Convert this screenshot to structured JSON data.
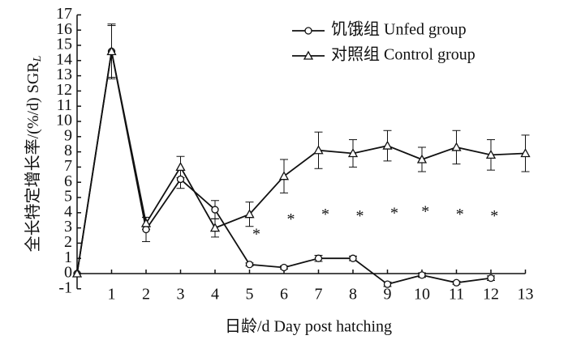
{
  "chart_data": {
    "type": "line",
    "xlabel": "日龄/d Day post hatching",
    "ylabel": "全长特定增长率/(%/d) SGR",
    "ylabel_sub": "L",
    "x": [
      0,
      1,
      2,
      3,
      4,
      5,
      6,
      7,
      8,
      9,
      10,
      11,
      12,
      13
    ],
    "series": [
      {
        "name": "饥饿组 Unfed group",
        "color": "#111111",
        "marker": "circle",
        "values": [
          0,
          14.6,
          2.9,
          6.2,
          4.2,
          0.6,
          0.4,
          1.0,
          1.0,
          -0.7,
          -0.1,
          -0.6,
          -0.3,
          null
        ],
        "errors": [
          0,
          1.7,
          0.8,
          0.6,
          0.6,
          0.1,
          0.1,
          0.2,
          0.15,
          0.15,
          0.15,
          0.1,
          0.15,
          null
        ]
      },
      {
        "name": "对照组 Control group",
        "color": "#111111",
        "marker": "triangle",
        "values": [
          0,
          14.6,
          3.3,
          7.0,
          3.0,
          3.9,
          6.4,
          8.1,
          7.9,
          8.4,
          7.5,
          8.3,
          7.8,
          7.9
        ],
        "errors": [
          0,
          1.8,
          0.4,
          0.7,
          0.6,
          0.8,
          1.1,
          1.2,
          0.9,
          1.0,
          0.8,
          1.1,
          1.0,
          1.2
        ]
      }
    ],
    "annotations": [
      {
        "text": "*",
        "x": 5.2,
        "y": 2.5
      },
      {
        "text": "*",
        "x": 6.2,
        "y": 3.5
      },
      {
        "text": "*",
        "x": 7.2,
        "y": 3.8
      },
      {
        "text": "*",
        "x": 8.2,
        "y": 3.7
      },
      {
        "text": "*",
        "x": 9.2,
        "y": 3.9
      },
      {
        "text": "*",
        "x": 10.1,
        "y": 4.0
      },
      {
        "text": "*",
        "x": 11.1,
        "y": 3.8
      },
      {
        "text": "*",
        "x": 12.1,
        "y": 3.7
      }
    ],
    "xlim": [
      0,
      13
    ],
    "xticks": [
      1,
      2,
      3,
      4,
      5,
      6,
      7,
      8,
      9,
      10,
      11,
      12,
      13
    ],
    "ylim": [
      -1,
      17
    ],
    "yticks": [
      -1,
      0,
      1,
      2,
      3,
      4,
      5,
      6,
      7,
      8,
      9,
      10,
      11,
      12,
      13,
      14,
      15,
      16,
      17
    ],
    "legend": "upper right",
    "grid": false
  }
}
